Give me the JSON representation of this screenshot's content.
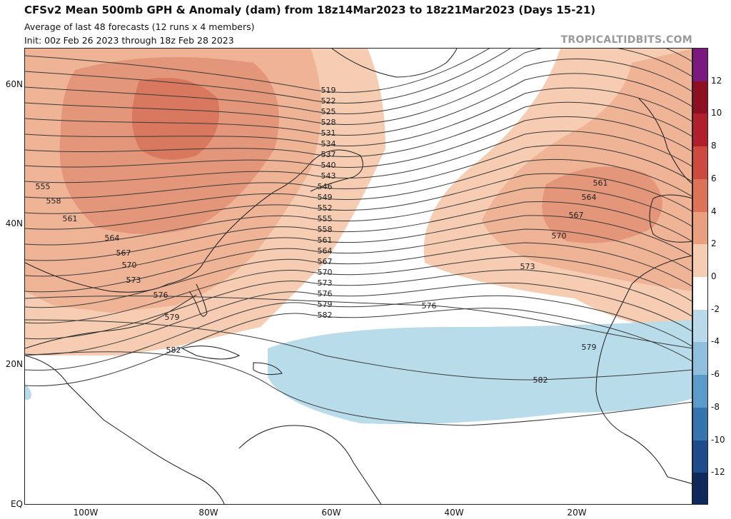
{
  "header": {
    "title": "CFSv2 Mean 500mb GPH & Anomaly (dam) from 18z14Mar2023 to 18z21Mar2023 (Days 15-21)",
    "subtitle": "Average of last 48 forecasts (12 runs x 4 members)",
    "init": "Init: 00z Feb 26 2023 through 18z Feb 28 2023",
    "credit": "TROPICALTIDBITS.COM"
  },
  "axes": {
    "lat_labels": [
      "60N",
      "40N",
      "20N",
      "EQ"
    ],
    "lon_labels": [
      "100W",
      "80W",
      "60W",
      "40W",
      "20W"
    ]
  },
  "contours": {
    "labels": [
      "519",
      "522",
      "525",
      "528",
      "531",
      "534",
      "537",
      "540",
      "543",
      "546",
      "549",
      "552",
      "555",
      "558",
      "561",
      "564",
      "567",
      "570",
      "573",
      "576",
      "579",
      "582"
    ],
    "west_labels": [
      "555",
      "558",
      "561",
      "564",
      "567",
      "570",
      "573",
      "576",
      "579",
      "582"
    ],
    "east_high_labels": [
      "561",
      "564",
      "567",
      "570"
    ],
    "east_labels": [
      "573",
      "576",
      "579",
      "582"
    ]
  },
  "anomaly_colors": {
    "pos_2": "#f6cdb2",
    "pos_4": "#efb396",
    "pos_6": "#e4967b",
    "pos_8": "#d8785f",
    "neg_2": "#b9dcea"
  },
  "colorbar": {
    "labels": [
      "12",
      "10",
      "8",
      "6",
      "4",
      "2",
      "0",
      "-2",
      "-4",
      "-6",
      "-8",
      "-10",
      "-12"
    ],
    "segments": [
      {
        "value": "14",
        "color": "#7a1a7e"
      },
      {
        "value": "12",
        "color": "#8d0f22"
      },
      {
        "value": "10",
        "color": "#b01f2c"
      },
      {
        "value": "8",
        "color": "#cc4a3e"
      },
      {
        "value": "6",
        "color": "#dc7358"
      },
      {
        "value": "4",
        "color": "#eaa07f"
      },
      {
        "value": "2",
        "color": "#f5cdb3"
      },
      {
        "value": "0",
        "color": "#ffffff"
      },
      {
        "value": "-2",
        "color": "#bad9ea"
      },
      {
        "value": "-4",
        "color": "#8fbfdc"
      },
      {
        "value": "-6",
        "color": "#5b9bc9"
      },
      {
        "value": "-8",
        "color": "#3574b0"
      },
      {
        "value": "-10",
        "color": "#1d4d8f"
      },
      {
        "value": "-12",
        "color": "#0e2a5a"
      }
    ]
  }
}
